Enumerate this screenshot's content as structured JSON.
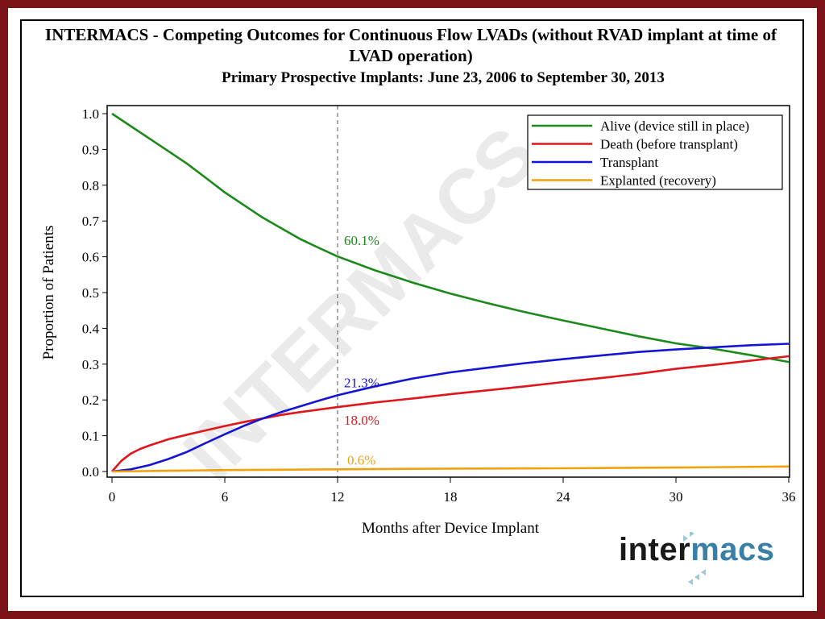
{
  "chart_data": {
    "type": "line",
    "title": "INTERMACS - Competing Outcomes for Continuous Flow LVADs (without RVAD implant at time of LVAD operation)",
    "subtitle": "Primary Prospective Implants: June 23, 2006 to September 30, 2013",
    "xlabel": "Months after Device Implant",
    "ylabel": "Proportion of Patients",
    "xlim": [
      0,
      36
    ],
    "ylim": [
      0,
      1
    ],
    "x_ticks": [
      "0",
      "6",
      "12",
      "18",
      "24",
      "30",
      "36"
    ],
    "y_ticks": [
      "0.0",
      "0.1",
      "0.2",
      "0.3",
      "0.4",
      "0.5",
      "0.6",
      "0.7",
      "0.8",
      "0.9",
      "1.0"
    ],
    "legend_position": "top-right",
    "reference_line_x": 12,
    "watermark": "INTERMACS",
    "series": [
      {
        "name": "Alive (device still in place)",
        "color": "#1a8a1a",
        "x": [
          0,
          1,
          2,
          3,
          4,
          5,
          6,
          7,
          8,
          9,
          10,
          11,
          12,
          14,
          16,
          18,
          20,
          22,
          24,
          26,
          28,
          30,
          32,
          34,
          36
        ],
        "y": [
          1.0,
          0.965,
          0.93,
          0.895,
          0.86,
          0.82,
          0.78,
          0.745,
          0.71,
          0.68,
          0.65,
          0.625,
          0.601,
          0.562,
          0.528,
          0.497,
          0.47,
          0.445,
          0.422,
          0.4,
          0.378,
          0.358,
          0.343,
          0.325,
          0.306
        ]
      },
      {
        "name": "Death (before transplant)",
        "color": "#e0161b",
        "x": [
          0,
          0.5,
          1,
          1.5,
          2,
          3,
          4,
          5,
          6,
          7,
          8,
          9,
          10,
          11,
          12,
          14,
          16,
          18,
          20,
          22,
          24,
          26,
          28,
          30,
          32,
          34,
          36
        ],
        "y": [
          0.0,
          0.03,
          0.05,
          0.063,
          0.073,
          0.09,
          0.103,
          0.115,
          0.127,
          0.138,
          0.148,
          0.158,
          0.166,
          0.173,
          0.18,
          0.193,
          0.204,
          0.216,
          0.227,
          0.238,
          0.25,
          0.261,
          0.273,
          0.287,
          0.298,
          0.31,
          0.322
        ]
      },
      {
        "name": "Transplant",
        "color": "#1414d6",
        "x": [
          0,
          1,
          2,
          3,
          4,
          5,
          6,
          7,
          8,
          9,
          10,
          11,
          12,
          14,
          16,
          18,
          20,
          22,
          24,
          26,
          28,
          30,
          32,
          34,
          36
        ],
        "y": [
          0.0,
          0.006,
          0.018,
          0.035,
          0.055,
          0.08,
          0.104,
          0.127,
          0.148,
          0.166,
          0.182,
          0.198,
          0.213,
          0.238,
          0.26,
          0.277,
          0.29,
          0.303,
          0.314,
          0.324,
          0.334,
          0.341,
          0.347,
          0.353,
          0.357
        ]
      },
      {
        "name": "Explanted (recovery)",
        "color": "#f2a10d",
        "x": [
          0,
          3,
          6,
          9,
          12,
          18,
          24,
          30,
          36
        ],
        "y": [
          0.0,
          0.002,
          0.004,
          0.005,
          0.006,
          0.008,
          0.009,
          0.011,
          0.014
        ]
      }
    ],
    "annotations": [
      {
        "text": "60.1%",
        "x": 12,
        "y": 0.601,
        "series": "Alive (device still in place)",
        "color": "#1a8a1a"
      },
      {
        "text": "21.3%",
        "x": 12,
        "y": 0.213,
        "series": "Transplant",
        "color": "#1414d6"
      },
      {
        "text": "18.0%",
        "x": 12,
        "y": 0.18,
        "series": "Death (before transplant)",
        "color": "#e0161b"
      },
      {
        "text": "0.6%",
        "x": 12,
        "y": 0.006,
        "series": "Explanted (recovery)",
        "color": "#f2a10d"
      }
    ]
  },
  "logo": {
    "text_dark": "inter",
    "text_blue": "macs",
    "accent_color": "#3a7fa6"
  }
}
